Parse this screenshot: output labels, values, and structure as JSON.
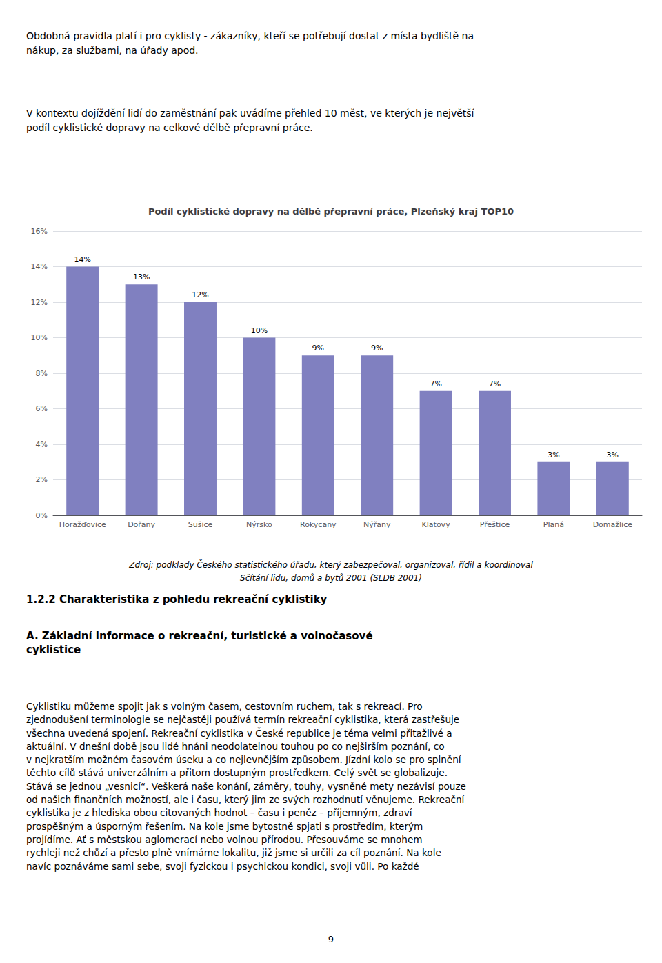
{
  "chart_data": {
    "type": "bar",
    "title": "Podíl cyklistické dopravy na dělbě přepravní práce, Plzeňský kraj TOP10",
    "categories": [
      "Horažďovice",
      "Dořany",
      "Sušice",
      "Nýrsko",
      "Rokycany",
      "Nýřany",
      "Klatovy",
      "Přeštice",
      "Planá",
      "Domažlice"
    ],
    "values": [
      0.14,
      0.13,
      0.12,
      0.1,
      0.09,
      0.09,
      0.07,
      0.07,
      0.03,
      0.03
    ],
    "value_labels": [
      "14%",
      "13%",
      "12%",
      "10%",
      "9%",
      "9%",
      "7%",
      "7%",
      "3%",
      "3%"
    ],
    "data_labels": true,
    "color": "#8080c0",
    "ylim": [
      0,
      0.16
    ],
    "yticks": [
      {
        "value": 0,
        "label": "0%"
      },
      {
        "value": 0.02,
        "label": "2%"
      },
      {
        "value": 0.04,
        "label": "4%"
      },
      {
        "value": 0.06,
        "label": "6%"
      },
      {
        "value": 0.08,
        "label": "8%"
      },
      {
        "value": 0.1,
        "label": "10%"
      },
      {
        "value": 0.12,
        "label": "12%"
      },
      {
        "value": 0.14,
        "label": "14%"
      },
      {
        "value": 0.16,
        "label": "16%"
      }
    ],
    "grid": true
  },
  "page_text": {
    "paragraphs": [
      [
        "Obdobná pravidla platí i pro cyklisty - zákazníky, kteří se potřebují dostat z místa bydliště na",
        "nákup, za službami, na úřady apod."
      ],
      [
        "V kontextu dojíždění lidí do zaměstnání pak uvádíme přehled 10 měst, ve kterých je největší",
        "podíl cyklistické dopravy na celkové dělbě přepravní práce."
      ]
    ],
    "source": [
      "Zdroj: podklady Českého statistického úřadu, který zabezpečoval, organizoval, řídil a koordinoval",
      "Sčítání lidu, domů a bytů 2001 (SLDB 2001)"
    ],
    "section_title": "1.2.2 Charakteristika z pohledu rekreační cyklistiky",
    "subsection": [
      "A. Základní informace o rekreační, turistické a volnočasové",
      "cyklistice"
    ],
    "body": [
      "Cyklistiku můžeme spojit jak s volným časem, cestovním ruchem, tak s rekreací. Pro",
      "zjednodušení terminologie se nejčastěji používá termín rekreační cyklistika, která zastřešuje",
      "všechna uvedená spojení. Rekreační cyklistika v České republice je téma velmi přitažlivé a",
      "aktuální. V dnešní době jsou lidé hnáni neodolatelnou touhou po co nejširším poznání, co",
      "v nejkratším možném časovém úseku a co nejlevnějším způsobem. Jízdní kolo se pro splnění",
      "těchto cílů stává univerzálním a přitom dostupným prostředkem. Celý svět se globalizuje.",
      "Stává se jednou „vesnicí“. Veškerá naše konání, záměry, touhy, vysněné mety nezávisí pouze",
      "od našich finančních možností, ale i času, který jim ze svých rozhodnutí věnujeme. Rekreační",
      "cyklistika je z hlediska obou citovaných hodnot – času i peněz – příjemným, zdraví",
      "prospěšným a úsporným řešením. Na kole jsme bytostně spjati s prostředím, kterým",
      "projídíme. Ať s městskou aglomerací nebo volnou přírodou. Přesouváme se mnohem",
      "rychleji než chůzí a přesto plně vnímáme lokalitu, již jsme si určili za cíl poznání. Na kole",
      "navíc poznáváme sami sebe, svoji fyzickou i psychickou kondici, svoji vůli. Po každé"
    ],
    "page_number": "- 9 -"
  }
}
